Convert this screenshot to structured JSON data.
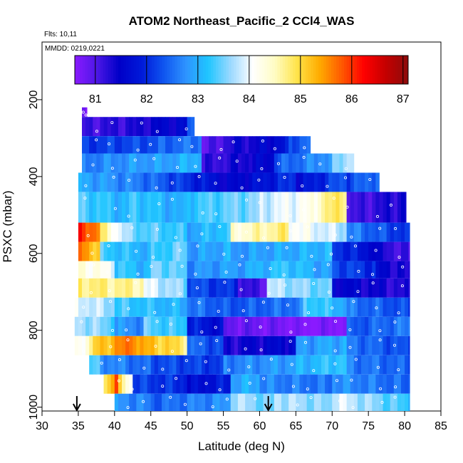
{
  "chart_data": {
    "type": "heatmap",
    "title": "ATOM2 Northeast_Pacific_2 CCl4_WAS",
    "annotations": {
      "flights": "Flts: 10,11",
      "dates": "MMDD: 0219,0221"
    },
    "xlabel": "Latitude (deg N)",
    "ylabel": "PSXC (mbar)",
    "xlim": [
      30,
      85
    ],
    "ylim": [
      1010,
      50
    ],
    "y_reversed": true,
    "x_ticks": [
      "30",
      "35",
      "40",
      "45",
      "50",
      "55",
      "60",
      "65",
      "70",
      "75",
      "80",
      "85"
    ],
    "y_ticks": [
      "200",
      "400",
      "600",
      "800",
      "1000"
    ],
    "colorbar": {
      "range": [
        80.6,
        87.1
      ],
      "ticks": [
        "81",
        "82",
        "83",
        "84",
        "85",
        "86",
        "87"
      ],
      "stops": [
        "#8a1aff",
        "#4c17e6",
        "#0000c8",
        "#0019d9",
        "#0f55f0",
        "#2e93ff",
        "#1fc6ff",
        "#9ad8ff",
        "#ffffff",
        "#fffcc4",
        "#ffe44a",
        "#ffac00",
        "#ff5a00",
        "#ff0000",
        "#c40000",
        "#8c0c0c"
      ]
    },
    "arrows_latitude": [
      34.8,
      61.2
    ],
    "layers": [
      {
        "p": [
          220,
          245
        ],
        "lat": [
          35.5,
          36.2
        ],
        "segs": [
          [
            35.5,
            36.2,
            80.6,
            80.6
          ]
        ]
      },
      {
        "p": [
          245,
          295
        ],
        "lat": [
          35.5,
          51.0
        ],
        "segs": [
          [
            35.5,
            44.0,
            81.1,
            81.3
          ],
          [
            44.0,
            50.0,
            81.4,
            81.6
          ],
          [
            50.0,
            51.0,
            82.2,
            82.4
          ]
        ]
      },
      {
        "p": [
          295,
          340
        ],
        "lat": [
          35.5,
          67.0
        ],
        "segs": [
          [
            35.5,
            46.0,
            82.1,
            82.3
          ],
          [
            46.0,
            52.0,
            82.4,
            82.6
          ],
          [
            52.0,
            58.0,
            80.8,
            81.5
          ],
          [
            58.0,
            64.0,
            81.3,
            81.8
          ],
          [
            64.0,
            67.0,
            82.2,
            82.6
          ]
        ]
      },
      {
        "p": [
          340,
          390
        ],
        "lat": [
          35.5,
          73.0
        ],
        "segs": [
          [
            35.5,
            45.0,
            82.6,
            82.9
          ],
          [
            45.0,
            52.0,
            82.8,
            83.1
          ],
          [
            52.0,
            62.0,
            81.1,
            81.6
          ],
          [
            62.0,
            70.0,
            82.3,
            82.9
          ],
          [
            70.0,
            73.0,
            83.3,
            84.0
          ]
        ]
      },
      {
        "p": [
          390,
          440
        ],
        "lat": [
          35.0,
          76.5
        ],
        "segs": [
          [
            35.0,
            45.0,
            83.0,
            82.5
          ],
          [
            45.0,
            55.0,
            82.5,
            81.6
          ],
          [
            55.0,
            65.0,
            81.4,
            82.1
          ],
          [
            65.0,
            72.0,
            81.6,
            82.4
          ],
          [
            72.0,
            76.5,
            82.2,
            82.6
          ]
        ]
      },
      {
        "p": [
          440,
          520
        ],
        "lat": [
          35.0,
          80.2
        ],
        "segs": [
          [
            35.0,
            42.0,
            83.4,
            83.0
          ],
          [
            42.0,
            50.0,
            83.3,
            82.9
          ],
          [
            50.0,
            60.0,
            83.2,
            83.6
          ],
          [
            60.0,
            68.0,
            83.8,
            84.2
          ],
          [
            68.0,
            72.0,
            84.6,
            84.9
          ],
          [
            72.0,
            80.2,
            81.0,
            81.4
          ]
        ]
      },
      {
        "p": [
          520,
          570
        ],
        "lat": [
          35.0,
          80.7
        ],
        "segs": [
          [
            35.0,
            38.0,
            86.1,
            85.6
          ],
          [
            38.0,
            42.0,
            84.8,
            83.6
          ],
          [
            42.0,
            50.0,
            83.5,
            83.2
          ],
          [
            50.0,
            56.0,
            82.9,
            83.3
          ],
          [
            56.0,
            64.0,
            84.3,
            84.8
          ],
          [
            64.0,
            72.0,
            84.2,
            83.7
          ],
          [
            72.0,
            80.7,
            82.7,
            82.0
          ]
        ]
      },
      {
        "p": [
          570,
          620
        ],
        "lat": [
          35.0,
          80.7
        ],
        "segs": [
          [
            35.0,
            38.0,
            85.8,
            85.0
          ],
          [
            38.0,
            45.0,
            83.3,
            83.0
          ],
          [
            45.0,
            50.0,
            83.2,
            83.5
          ],
          [
            50.0,
            56.0,
            82.8,
            83.0
          ],
          [
            56.0,
            70.0,
            82.8,
            83.1
          ],
          [
            70.0,
            76.0,
            82.2,
            81.6
          ],
          [
            76.0,
            80.7,
            81.4,
            81.0
          ]
        ]
      },
      {
        "p": [
          620,
          665
        ],
        "lat": [
          35.0,
          80.7
        ],
        "segs": [
          [
            35.0,
            40.0,
            84.4,
            84.0
          ],
          [
            40.0,
            45.0,
            83.3,
            83.0
          ],
          [
            45.0,
            50.0,
            83.6,
            83.3
          ],
          [
            50.0,
            56.0,
            82.7,
            82.9
          ],
          [
            56.0,
            63.0,
            82.8,
            83.2
          ],
          [
            63.0,
            70.0,
            83.3,
            82.8
          ],
          [
            70.0,
            76.0,
            82.3,
            82.0
          ],
          [
            76.0,
            80.7,
            81.6,
            81.2
          ]
        ]
      },
      {
        "p": [
          665,
          715
        ],
        "lat": [
          35.0,
          80.7
        ],
        "segs": [
          [
            35.0,
            44.0,
            84.8,
            84.6
          ],
          [
            44.0,
            50.0,
            84.0,
            83.5
          ],
          [
            50.0,
            57.0,
            82.3,
            82.0
          ],
          [
            57.0,
            61.0,
            81.2,
            81.0
          ],
          [
            61.0,
            70.0,
            83.8,
            83.4
          ],
          [
            70.0,
            80.7,
            81.6,
            81.2
          ]
        ]
      },
      {
        "p": [
          715,
          765
        ],
        "lat": [
          34.5,
          80.7
        ],
        "segs": [
          [
            34.5,
            40.0,
            84.0,
            83.6
          ],
          [
            40.0,
            50.0,
            83.3,
            83.0
          ],
          [
            50.0,
            56.0,
            82.6,
            82.3
          ],
          [
            56.0,
            66.0,
            82.3,
            82.6
          ],
          [
            66.0,
            72.0,
            83.4,
            83.0
          ],
          [
            72.0,
            80.7,
            82.6,
            82.2
          ]
        ]
      },
      {
        "p": [
          765,
          815
        ],
        "lat": [
          34.5,
          80.7
        ],
        "segs": [
          [
            34.5,
            40.0,
            83.8,
            83.4
          ],
          [
            40.0,
            44.0,
            82.8,
            82.7
          ],
          [
            44.0,
            50.0,
            83.4,
            83.2
          ],
          [
            50.0,
            55.0,
            82.0,
            81.6
          ],
          [
            55.0,
            65.0,
            80.9,
            80.7
          ],
          [
            65.0,
            72.0,
            80.6,
            80.7
          ],
          [
            72.0,
            80.7,
            82.3,
            82.6
          ]
        ]
      },
      {
        "p": [
          815,
          865
        ],
        "lat": [
          34.5,
          80.7
        ],
        "segs": [
          [
            34.5,
            37.0,
            84.0,
            84.6
          ],
          [
            37.0,
            43.0,
            85.0,
            85.8
          ],
          [
            43.0,
            50.0,
            85.4,
            84.8
          ],
          [
            50.0,
            55.0,
            82.5,
            82.2
          ],
          [
            55.0,
            65.0,
            81.3,
            81.6
          ],
          [
            65.0,
            72.0,
            82.8,
            83.0
          ],
          [
            72.0,
            80.7,
            82.6,
            82.2
          ]
        ]
      },
      {
        "p": [
          865,
          915
        ],
        "lat": [
          36.5,
          80.7
        ],
        "segs": [
          [
            36.5,
            38.0,
            83.4,
            83.2
          ],
          [
            38.0,
            45.0,
            82.8,
            82.4
          ],
          [
            45.0,
            55.0,
            82.3,
            82.1
          ],
          [
            55.0,
            65.0,
            82.6,
            82.9
          ],
          [
            65.0,
            72.0,
            83.0,
            83.3
          ],
          [
            72.0,
            80.7,
            82.6,
            82.4
          ]
        ]
      },
      {
        "p": [
          915,
          965
        ],
        "lat": [
          38.5,
          80.7
        ],
        "segs": [
          [
            38.5,
            40.5,
            84.7,
            86.0
          ],
          [
            40.5,
            42.5,
            85.0,
            84.0
          ],
          [
            42.5,
            50.0,
            82.2,
            82.0
          ],
          [
            50.0,
            56.0,
            81.6,
            81.9
          ],
          [
            56.0,
            60.0,
            82.9,
            83.0
          ],
          [
            60.0,
            70.0,
            82.7,
            82.5
          ],
          [
            70.0,
            80.7,
            82.8,
            82.4
          ]
        ]
      },
      {
        "p": [
          965,
          1010
        ],
        "lat": [
          40.0,
          80.7
        ],
        "segs": [
          [
            40.0,
            45.0,
            82.8,
            82.6
          ],
          [
            45.0,
            56.0,
            82.4,
            82.8
          ],
          [
            56.0,
            62.0,
            83.8,
            83.4
          ],
          [
            62.0,
            70.0,
            83.8,
            83.5
          ],
          [
            70.0,
            80.7,
            84.0,
            83.2
          ]
        ]
      }
    ]
  }
}
